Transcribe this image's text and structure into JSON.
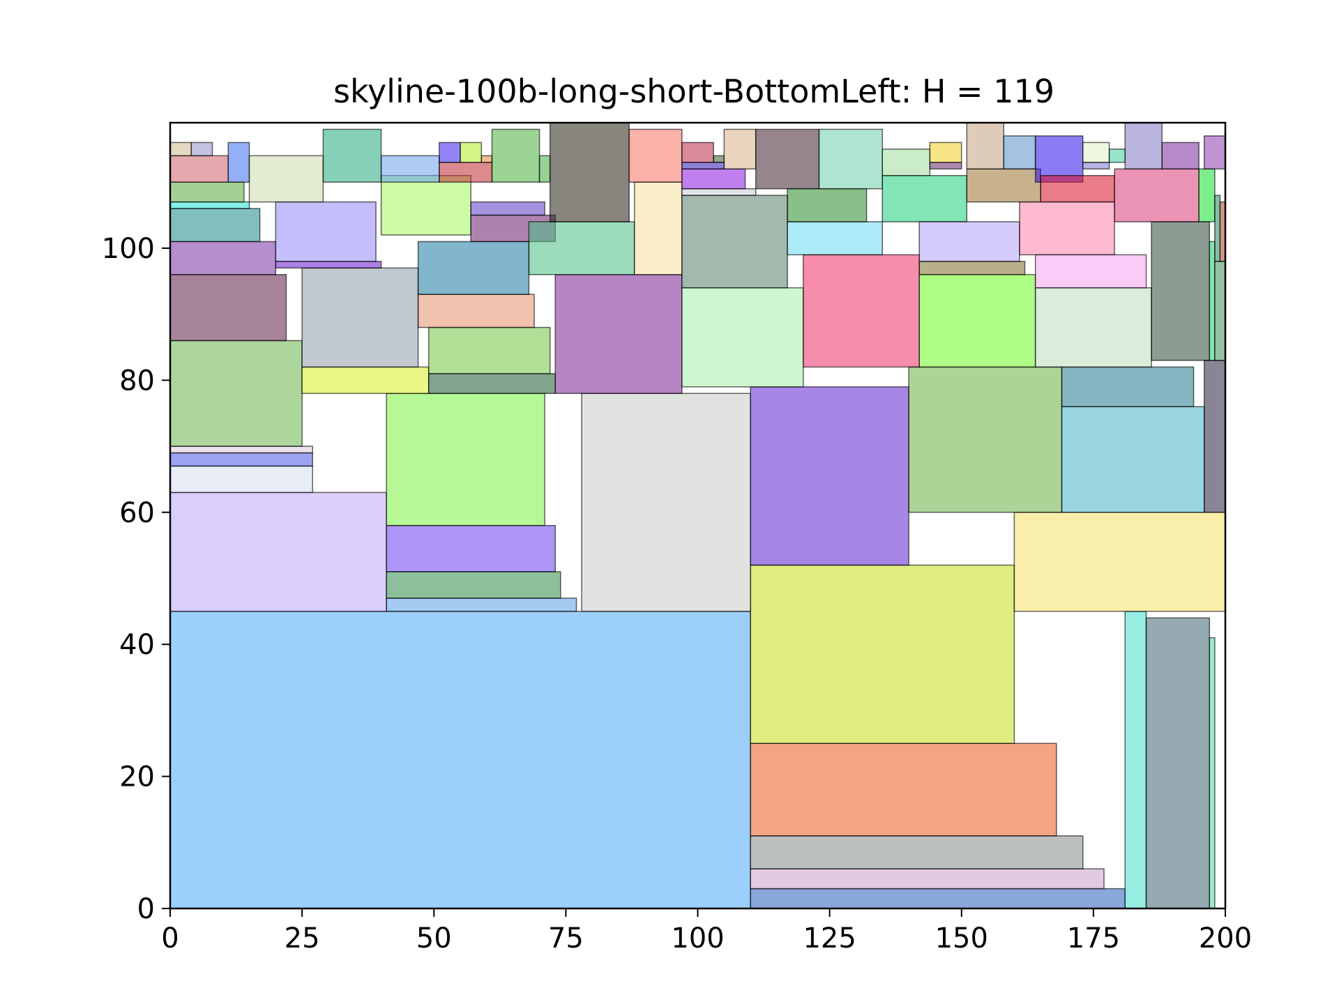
{
  "chart_data": {
    "type": "rect-packing",
    "title": "skyline-100b-long-short-BottomLeft: H = 119",
    "xlim": [
      0,
      200
    ],
    "ylim": [
      0,
      119
    ],
    "xticks": [
      0,
      25,
      50,
      75,
      100,
      125,
      150,
      175,
      200
    ],
    "yticks": [
      0,
      20,
      40,
      60,
      80,
      100
    ],
    "grid": false,
    "rects": [
      {
        "x": 0,
        "y": 0,
        "w": 110,
        "h": 45,
        "color": "#4aa8f8"
      },
      {
        "x": 110,
        "y": 0,
        "w": 71,
        "h": 3,
        "color": "#2a5fbf"
      },
      {
        "x": 110,
        "y": 3,
        "w": 67,
        "h": 3,
        "color": "#c9a0c9"
      },
      {
        "x": 110,
        "y": 6,
        "w": 63,
        "h": 5,
        "color": "#848a8c"
      },
      {
        "x": 110,
        "y": 11,
        "w": 58,
        "h": 14,
        "color": "#e85a1e"
      },
      {
        "x": 110,
        "y": 25,
        "w": 50,
        "h": 27,
        "color": "#c4de1a"
      },
      {
        "x": 181,
        "y": 0,
        "w": 4,
        "h": 45,
        "color": "#40e0cc"
      },
      {
        "x": 185,
        "y": 0,
        "w": 12,
        "h": 44,
        "color": "#3d6470"
      },
      {
        "x": 197,
        "y": 0,
        "w": 1,
        "h": 41,
        "color": "#50d8a0"
      },
      {
        "x": 160,
        "y": 45,
        "w": 40,
        "h": 15,
        "color": "#f6e264"
      },
      {
        "x": 0,
        "y": 45,
        "w": 41,
        "h": 18,
        "color": "#c0a6fa"
      },
      {
        "x": 41,
        "y": 45,
        "w": 36,
        "h": 2,
        "color": "#5a9ee8"
      },
      {
        "x": 41,
        "y": 47,
        "w": 33,
        "h": 4,
        "color": "#2e8c48"
      },
      {
        "x": 41,
        "y": 51,
        "w": 32,
        "h": 7,
        "color": "#6a40ec"
      },
      {
        "x": 41,
        "y": 58,
        "w": 30,
        "h": 20,
        "color": "#7af040"
      },
      {
        "x": 78,
        "y": 45,
        "w": 32,
        "h": 33,
        "color": "#c8ccc8"
      },
      {
        "x": 110,
        "y": 52,
        "w": 30,
        "h": 27,
        "color": "#5e24d0"
      },
      {
        "x": 140,
        "y": 60,
        "w": 29,
        "h": 22,
        "color": "#6aae40"
      },
      {
        "x": 169,
        "y": 60,
        "w": 27,
        "h": 16,
        "color": "#46b2c6"
      },
      {
        "x": 169,
        "y": 76,
        "w": 25,
        "h": 6,
        "color": "#207a8e"
      },
      {
        "x": 196,
        "y": 60,
        "w": 4,
        "h": 23,
        "color": "#2a2040"
      },
      {
        "x": 0,
        "y": 63,
        "w": 27,
        "h": 4,
        "color": "#d4dcf0"
      },
      {
        "x": 0,
        "y": 67,
        "w": 27,
        "h": 2,
        "color": "#4a58e4"
      },
      {
        "x": 0,
        "y": 69,
        "w": 27,
        "h": 1,
        "color": "#e0c8e0"
      },
      {
        "x": 0,
        "y": 70,
        "w": 25,
        "h": 16,
        "color": "#6ab44a"
      },
      {
        "x": 25,
        "y": 78,
        "w": 24,
        "h": 4,
        "color": "#d8f020"
      },
      {
        "x": 49,
        "y": 78,
        "w": 24,
        "h": 3,
        "color": "#1a5a2e"
      },
      {
        "x": 49,
        "y": 81,
        "w": 23,
        "h": 7,
        "color": "#70c440"
      },
      {
        "x": 73,
        "y": 78,
        "w": 24,
        "h": 18,
        "color": "#7a1e92"
      },
      {
        "x": 97,
        "y": 79,
        "w": 23,
        "h": 15,
        "color": "#a8f0a8"
      },
      {
        "x": 120,
        "y": 82,
        "w": 22,
        "h": 17,
        "color": "#f0306a"
      },
      {
        "x": 142,
        "y": 82,
        "w": 22,
        "h": 14,
        "color": "#6cfe20"
      },
      {
        "x": 164,
        "y": 82,
        "w": 22,
        "h": 12,
        "color": "#bcdebc"
      },
      {
        "x": 186,
        "y": 83,
        "w": 11,
        "h": 21,
        "color": "#2e4a38"
      },
      {
        "x": 197,
        "y": 83,
        "w": 1,
        "h": 18,
        "color": "#1ad070"
      },
      {
        "x": 198,
        "y": 83,
        "w": 2,
        "h": 15,
        "color": "#3a9058"
      },
      {
        "x": 25,
        "y": 82,
        "w": 22,
        "h": 15,
        "color": "#909ca8"
      },
      {
        "x": 47,
        "y": 88,
        "w": 22,
        "h": 5,
        "color": "#e6906a"
      },
      {
        "x": 47,
        "y": 93,
        "w": 21,
        "h": 8,
        "color": "#1a7aa4"
      },
      {
        "x": 0,
        "y": 86,
        "w": 22,
        "h": 10,
        "color": "#5e1e4a"
      },
      {
        "x": 0,
        "y": 96,
        "w": 20,
        "h": 5,
        "color": "#7a32a4"
      },
      {
        "x": 20,
        "y": 97,
        "w": 20,
        "h": 1,
        "color": "#6a1ad0"
      },
      {
        "x": 20,
        "y": 98,
        "w": 19,
        "h": 9,
        "color": "#9488fa"
      },
      {
        "x": 0,
        "y": 101,
        "w": 17,
        "h": 5,
        "color": "#1a8a8a"
      },
      {
        "x": 0,
        "y": 106,
        "w": 15,
        "h": 1,
        "color": "#20e0d0"
      },
      {
        "x": 0,
        "y": 107,
        "w": 14,
        "h": 3,
        "color": "#5aac3a"
      },
      {
        "x": 0,
        "y": 110,
        "w": 11,
        "h": 4,
        "color": "#d06068"
      },
      {
        "x": 11,
        "y": 110,
        "w": 4,
        "h": 6,
        "color": "#3a70ee"
      },
      {
        "x": 0,
        "y": 114,
        "w": 4,
        "h": 2,
        "color": "#d0b890"
      },
      {
        "x": 4,
        "y": 114,
        "w": 4,
        "h": 2,
        "color": "#9490c8"
      },
      {
        "x": 15,
        "y": 107,
        "w": 14,
        "h": 7,
        "color": "#ccdcaa"
      },
      {
        "x": 29,
        "y": 110,
        "w": 11,
        "h": 8,
        "color": "#20aa7a"
      },
      {
        "x": 40,
        "y": 102,
        "w": 17,
        "h": 9,
        "color": "#a4f860"
      },
      {
        "x": 40,
        "y": 110,
        "w": 11,
        "h": 4,
        "color": "#6aa0ec"
      },
      {
        "x": 51,
        "y": 110,
        "w": 10,
        "h": 3,
        "color": "#c02a30"
      },
      {
        "x": 51,
        "y": 113,
        "w": 4,
        "h": 3,
        "color": "#3a20f0"
      },
      {
        "x": 55,
        "y": 113,
        "w": 4,
        "h": 3,
        "color": "#b0ec20"
      },
      {
        "x": 59,
        "y": 113,
        "w": 2,
        "h": 1,
        "color": "#e08830"
      },
      {
        "x": 57,
        "y": 101,
        "w": 16,
        "h": 4,
        "color": "#6a1e6a"
      },
      {
        "x": 57,
        "y": 105,
        "w": 14,
        "h": 2,
        "color": "#5a3ac4"
      },
      {
        "x": 61,
        "y": 110,
        "w": 9,
        "h": 8,
        "color": "#4ab03a"
      },
      {
        "x": 70,
        "y": 110,
        "w": 2,
        "h": 4,
        "color": "#40b040"
      },
      {
        "x": 68,
        "y": 96,
        "w": 20,
        "h": 8,
        "color": "#4ac084"
      },
      {
        "x": 72,
        "y": 104,
        "w": 15,
        "h": 15,
        "color": "#242014"
      },
      {
        "x": 88,
        "y": 96,
        "w": 9,
        "h": 14,
        "color": "#f6e09a"
      },
      {
        "x": 87,
        "y": 110,
        "w": 10,
        "h": 8,
        "color": "#f87060"
      },
      {
        "x": 97,
        "y": 94,
        "w": 20,
        "h": 14,
        "color": "#5a806a"
      },
      {
        "x": 97,
        "y": 108,
        "w": 14,
        "h": 1,
        "color": "#c8ccd8"
      },
      {
        "x": 97,
        "y": 109,
        "w": 12,
        "h": 3,
        "color": "#8a18e0"
      },
      {
        "x": 97,
        "y": 112,
        "w": 8,
        "h": 1,
        "color": "#301ab0"
      },
      {
        "x": 97,
        "y": 113,
        "w": 6,
        "h": 3,
        "color": "#b82a4a"
      },
      {
        "x": 103,
        "y": 113,
        "w": 2,
        "h": 1,
        "color": "#306030"
      },
      {
        "x": 105,
        "y": 112,
        "w": 6,
        "h": 6,
        "color": "#d8b088"
      },
      {
        "x": 111,
        "y": 109,
        "w": 12,
        "h": 9,
        "color": "#402030"
      },
      {
        "x": 117,
        "y": 99,
        "w": 18,
        "h": 5,
        "color": "#6ad8f0"
      },
      {
        "x": 117,
        "y": 104,
        "w": 15,
        "h": 5,
        "color": "#2a8a2a"
      },
      {
        "x": 123,
        "y": 109,
        "w": 12,
        "h": 9,
        "color": "#6ad0aa"
      },
      {
        "x": 135,
        "y": 104,
        "w": 16,
        "h": 7,
        "color": "#1ad078"
      },
      {
        "x": 135,
        "y": 111,
        "w": 9,
        "h": 4,
        "color": "#a0dc9a"
      },
      {
        "x": 142,
        "y": 96,
        "w": 20,
        "h": 2,
        "color": "#80702a"
      },
      {
        "x": 142,
        "y": 98,
        "w": 19,
        "h": 6,
        "color": "#b0a0f8"
      },
      {
        "x": 144,
        "y": 112,
        "w": 6,
        "h": 1,
        "color": "#6a2a6a"
      },
      {
        "x": 144,
        "y": 113,
        "w": 6,
        "h": 3,
        "color": "#f0d020"
      },
      {
        "x": 151,
        "y": 107,
        "w": 14,
        "h": 5,
        "color": "#9a7230"
      },
      {
        "x": 151,
        "y": 112,
        "w": 7,
        "h": 7,
        "color": "#c4a080"
      },
      {
        "x": 158,
        "y": 112,
        "w": 6,
        "h": 5,
        "color": "#5a90c8"
      },
      {
        "x": 164,
        "y": 110,
        "w": 9,
        "h": 7,
        "color": "#2a10e8"
      },
      {
        "x": 165,
        "y": 107,
        "w": 14,
        "h": 4,
        "color": "#d8102a"
      },
      {
        "x": 161,
        "y": 99,
        "w": 18,
        "h": 8,
        "color": "#fc80aa"
      },
      {
        "x": 164,
        "y": 94,
        "w": 21,
        "h": 5,
        "color": "#f8a0f0"
      },
      {
        "x": 173,
        "y": 112,
        "w": 5,
        "h": 1,
        "color": "#7a78d0"
      },
      {
        "x": 173,
        "y": 113,
        "w": 5,
        "h": 3,
        "color": "#e0f0c8"
      },
      {
        "x": 178,
        "y": 113,
        "w": 3,
        "h": 2,
        "color": "#40d0a0"
      },
      {
        "x": 179,
        "y": 104,
        "w": 16,
        "h": 8,
        "color": "#d83a78"
      },
      {
        "x": 181,
        "y": 112,
        "w": 7,
        "h": 7,
        "color": "#8078c4"
      },
      {
        "x": 195,
        "y": 104,
        "w": 3,
        "h": 8,
        "color": "#10e030"
      },
      {
        "x": 198,
        "y": 98,
        "w": 1,
        "h": 10,
        "color": "#208a58"
      },
      {
        "x": 199,
        "y": 98,
        "w": 1,
        "h": 9,
        "color": "#b04020"
      },
      {
        "x": 188,
        "y": 112,
        "w": 7,
        "h": 4,
        "color": "#7a2a9a"
      },
      {
        "x": 196,
        "y": 112,
        "w": 4,
        "h": 5,
        "color": "#8a3ab0"
      }
    ]
  }
}
